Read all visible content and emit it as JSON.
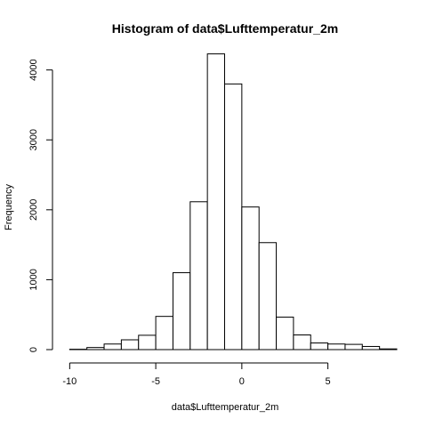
{
  "chart_data": {
    "type": "bar",
    "title": "Histogram of data$Lufttemperatur_2m",
    "xlabel": "data$Lufttemperatur_2m",
    "ylabel": "Frequency",
    "xlim": [
      -11,
      9
    ],
    "ylim": [
      0,
      4250
    ],
    "bin_width": 1,
    "bin_edges": [
      -10,
      -9,
      -8,
      -7,
      -6,
      -5,
      -4,
      -3,
      -2,
      -1,
      0,
      1,
      2,
      3,
      4,
      5,
      6,
      7,
      8,
      9
    ],
    "values": [
      5,
      30,
      80,
      140,
      205,
      475,
      1100,
      2115,
      4230,
      3800,
      2040,
      1530,
      465,
      210,
      95,
      80,
      75,
      45,
      10
    ],
    "x_ticks": [
      -10,
      -5,
      0,
      5
    ],
    "y_ticks": [
      0,
      1000,
      2000,
      3000,
      4000
    ],
    "grid": false,
    "legend": "none"
  }
}
